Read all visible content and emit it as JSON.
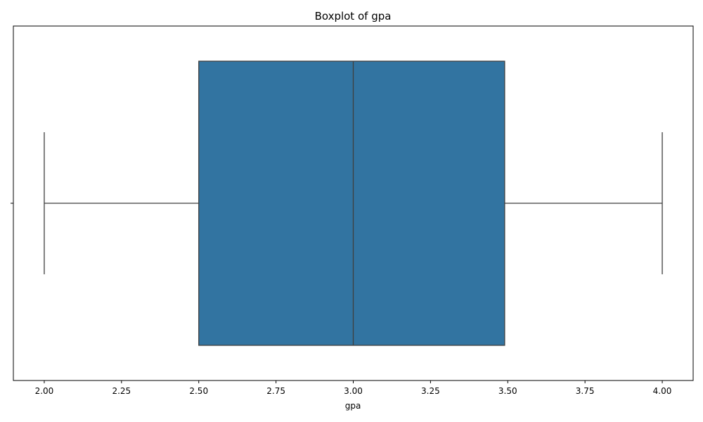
{
  "chart_data": {
    "type": "box",
    "title": "Boxplot of gpa",
    "xlabel": "gpa",
    "ylabel": "",
    "xlim": [
      1.9,
      4.1
    ],
    "xticks": [
      2.0,
      2.25,
      2.5,
      2.75,
      3.0,
      3.25,
      3.5,
      3.75,
      4.0
    ],
    "xtick_labels": [
      "2.00",
      "2.25",
      "2.50",
      "2.75",
      "3.00",
      "3.25",
      "3.50",
      "3.75",
      "4.00"
    ],
    "orientation": "horizontal",
    "grid": false,
    "box": {
      "whisker_low": 2.0,
      "q1": 2.5,
      "median": 3.0,
      "q3": 3.49,
      "whisker_high": 4.0
    },
    "colors": {
      "box_fill": "#3274a1",
      "line": "#3f3f3f",
      "axes": "#000000"
    }
  }
}
